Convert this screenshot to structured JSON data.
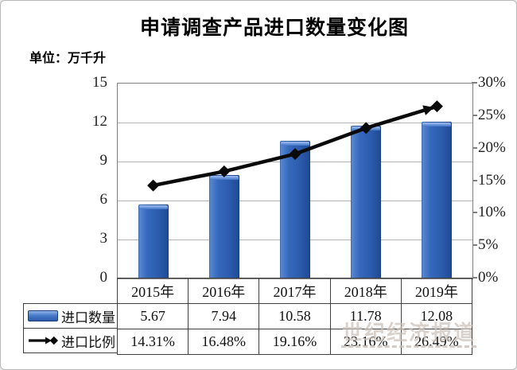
{
  "title": "申请调查产品进口数量变化图",
  "unit_label": "单位：万千升",
  "watermark": {
    "text": "世纪经济报道"
  },
  "chart_data": {
    "type": "bar+line",
    "categories": [
      "2015年",
      "2016年",
      "2017年",
      "2018年",
      "2019年"
    ],
    "series": [
      {
        "name": "进口数量",
        "type": "bar",
        "axis": "left",
        "values": [
          5.67,
          7.94,
          10.58,
          11.78,
          12.08
        ],
        "color": "#2e63b5"
      },
      {
        "name": "进口比例",
        "type": "line",
        "axis": "right",
        "values": [
          14.31,
          16.48,
          19.16,
          23.16,
          26.49
        ],
        "color": "#0a0a0a",
        "marker": "diamond",
        "end_cap": "arrow"
      }
    ],
    "left_axis": {
      "ticks": [
        "15",
        "12",
        "9",
        "6",
        "3",
        "0"
      ],
      "range": [
        0,
        15
      ]
    },
    "right_axis": {
      "ticks": [
        "30%",
        "25%",
        "20%",
        "15%",
        "10%",
        "5%",
        "0%"
      ],
      "range": [
        0,
        30
      ]
    },
    "grid": true,
    "legend_position": "table-left"
  },
  "table": {
    "header": [
      "2015年",
      "2016年",
      "2017年",
      "2018年",
      "2019年"
    ],
    "rows": [
      {
        "label": "进口数量",
        "cells": [
          "5.67",
          "7.94",
          "10.58",
          "11.78",
          "12.08"
        ]
      },
      {
        "label": "进口比例",
        "cells": [
          "14.31%",
          "16.48%",
          "19.16%",
          "23.16%",
          "26.49%"
        ]
      }
    ]
  }
}
